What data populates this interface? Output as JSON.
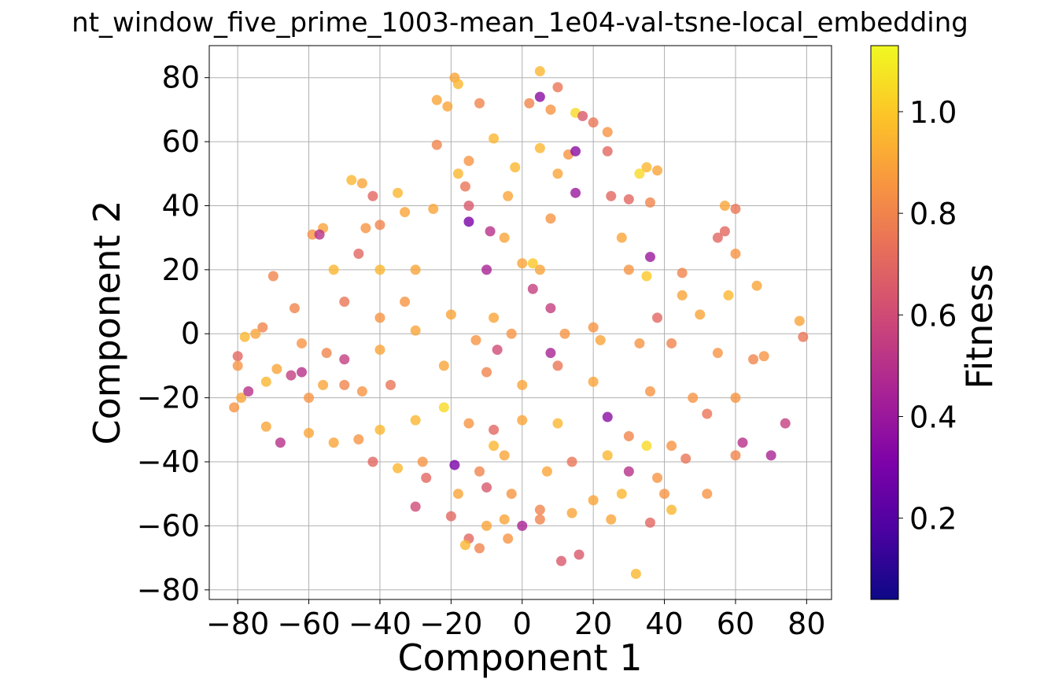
{
  "chart_data": {
    "type": "scatter",
    "title": "nt_window_five_prime_1003-mean_1e04-val-tsne-local_embedding",
    "xlabel": "Component 1",
    "ylabel": "Component 2",
    "xlim": [
      -88,
      87
    ],
    "ylim": [
      -83,
      90
    ],
    "xticks": [
      -80,
      -60,
      -40,
      -20,
      0,
      20,
      40,
      60,
      80
    ],
    "yticks": [
      -80,
      -60,
      -40,
      -20,
      0,
      20,
      40,
      60,
      80
    ],
    "xtick_labels": [
      "−80",
      "−60",
      "−40",
      "−20",
      "0",
      "20",
      "40",
      "60",
      "80"
    ],
    "ytick_labels": [
      "−80",
      "−60",
      "−40",
      "−20",
      "0",
      "20",
      "40",
      "60",
      "80"
    ],
    "grid": true,
    "colormap": "plasma",
    "colorbar": {
      "label": "Fitness",
      "range": [
        0.04,
        1.13
      ],
      "ticks": [
        0.2,
        0.4,
        0.6,
        0.8,
        1.0
      ],
      "tick_labels": [
        "0.2",
        "0.4",
        "0.6",
        "0.8",
        "1.0"
      ]
    },
    "points_note": "Representative sample of points (x, y, fitness) read from the scatter.",
    "points": [
      [
        5,
        82,
        0.95
      ],
      [
        -19,
        80,
        0.9
      ],
      [
        -18,
        78,
        0.95
      ],
      [
        5,
        74,
        0.35
      ],
      [
        10,
        77,
        0.75
      ],
      [
        -24,
        73,
        0.9
      ],
      [
        -21,
        71,
        0.9
      ],
      [
        -12,
        72,
        0.8
      ],
      [
        2,
        72,
        0.8
      ],
      [
        8,
        70,
        0.85
      ],
      [
        15,
        69,
        1.05
      ],
      [
        17,
        68,
        0.65
      ],
      [
        20,
        66,
        0.75
      ],
      [
        24,
        63,
        0.85
      ],
      [
        5,
        58,
        0.95
      ],
      [
        -8,
        61,
        0.95
      ],
      [
        -24,
        59,
        0.8
      ],
      [
        13,
        56,
        0.85
      ],
      [
        15,
        57,
        0.35
      ],
      [
        24,
        57,
        0.7
      ],
      [
        -2,
        52,
        0.95
      ],
      [
        -15,
        54,
        0.85
      ],
      [
        35,
        52,
        0.95
      ],
      [
        33,
        50,
        1.05
      ],
      [
        38,
        51,
        0.9
      ],
      [
        -18,
        50,
        0.95
      ],
      [
        10,
        50,
        0.9
      ],
      [
        15,
        44,
        0.4
      ],
      [
        -35,
        44,
        0.95
      ],
      [
        -48,
        48,
        0.95
      ],
      [
        -45,
        47,
        0.9
      ],
      [
        -42,
        43,
        0.7
      ],
      [
        -16,
        46,
        0.75
      ],
      [
        -4,
        43,
        0.9
      ],
      [
        30,
        42,
        0.7
      ],
      [
        36,
        41,
        0.8
      ],
      [
        57,
        40,
        0.9
      ],
      [
        60,
        39,
        0.75
      ],
      [
        -33,
        38,
        0.9
      ],
      [
        -25,
        39,
        0.9
      ],
      [
        -15,
        40,
        0.65
      ],
      [
        8,
        36,
        0.85
      ],
      [
        -40,
        34,
        0.8
      ],
      [
        -56,
        33,
        0.9
      ],
      [
        -59,
        31,
        0.85
      ],
      [
        -57,
        31,
        0.5
      ],
      [
        -44,
        33,
        0.85
      ],
      [
        -15,
        35,
        0.3
      ],
      [
        -9,
        32,
        0.5
      ],
      [
        -5,
        30,
        0.9
      ],
      [
        28,
        30,
        0.9
      ],
      [
        55,
        30,
        0.7
      ],
      [
        57,
        32,
        0.7
      ],
      [
        -53,
        20,
        0.95
      ],
      [
        -46,
        25,
        0.7
      ],
      [
        -40,
        20,
        0.95
      ],
      [
        -30,
        20,
        0.9
      ],
      [
        -10,
        20,
        0.45
      ],
      [
        0,
        22,
        0.9
      ],
      [
        5,
        20,
        0.9
      ],
      [
        30,
        20,
        0.85
      ],
      [
        35,
        18,
        1.0
      ],
      [
        45,
        19,
        0.8
      ],
      [
        60,
        25,
        0.85
      ],
      [
        -70,
        18,
        0.8
      ],
      [
        -64,
        8,
        0.8
      ],
      [
        -50,
        10,
        0.75
      ],
      [
        -40,
        5,
        0.85
      ],
      [
        -33,
        10,
        0.85
      ],
      [
        -20,
        6,
        0.9
      ],
      [
        -8,
        5,
        0.9
      ],
      [
        3,
        14,
        0.55
      ],
      [
        8,
        8,
        0.55
      ],
      [
        20,
        2,
        0.85
      ],
      [
        38,
        5,
        0.7
      ],
      [
        50,
        6,
        0.9
      ],
      [
        66,
        15,
        0.9
      ],
      [
        78,
        4,
        0.9
      ],
      [
        79,
        -1,
        0.75
      ],
      [
        -73,
        2,
        0.8
      ],
      [
        -78,
        -1,
        0.95
      ],
      [
        -80,
        -7,
        0.7
      ],
      [
        -75,
        0,
        0.9
      ],
      [
        -62,
        -3,
        0.85
      ],
      [
        -55,
        -6,
        0.8
      ],
      [
        -50,
        -8,
        0.55
      ],
      [
        -40,
        -5,
        0.9
      ],
      [
        -30,
        1,
        0.9
      ],
      [
        -13,
        -2,
        0.85
      ],
      [
        -3,
        0,
        0.85
      ],
      [
        12,
        0,
        0.85
      ],
      [
        22,
        -2,
        0.9
      ],
      [
        33,
        -3,
        0.85
      ],
      [
        42,
        -3,
        0.8
      ],
      [
        55,
        -6,
        0.85
      ],
      [
        65,
        -8,
        0.8
      ],
      [
        68,
        -7,
        0.85
      ],
      [
        -80,
        -10,
        0.85
      ],
      [
        -79,
        -20,
        0.9
      ],
      [
        -72,
        -15,
        0.95
      ],
      [
        -69,
        -11,
        0.9
      ],
      [
        -65,
        -13,
        0.55
      ],
      [
        -60,
        -20,
        0.85
      ],
      [
        -56,
        -16,
        0.9
      ],
      [
        -50,
        -16,
        0.8
      ],
      [
        -45,
        -18,
        0.85
      ],
      [
        -37,
        -16,
        0.75
      ],
      [
        -22,
        -10,
        0.9
      ],
      [
        -10,
        -12,
        0.8
      ],
      [
        0,
        -16,
        0.9
      ],
      [
        10,
        -10,
        0.75
      ],
      [
        20,
        -15,
        0.9
      ],
      [
        36,
        -18,
        0.85
      ],
      [
        48,
        -20,
        0.85
      ],
      [
        60,
        -20,
        0.85
      ],
      [
        -81,
        -23,
        0.85
      ],
      [
        -77,
        -18,
        0.5
      ],
      [
        -72,
        -29,
        0.9
      ],
      [
        -68,
        -34,
        0.5
      ],
      [
        -60,
        -31,
        0.9
      ],
      [
        -53,
        -34,
        0.9
      ],
      [
        -46,
        -33,
        0.85
      ],
      [
        -40,
        -30,
        0.95
      ],
      [
        -30,
        -27,
        0.95
      ],
      [
        -22,
        -23,
        1.05
      ],
      [
        -15,
        -28,
        0.85
      ],
      [
        -8,
        -30,
        0.7
      ],
      [
        0,
        -27,
        0.9
      ],
      [
        10,
        -28,
        0.95
      ],
      [
        24,
        -26,
        0.35
      ],
      [
        30,
        -32,
        0.8
      ],
      [
        35,
        -35,
        1.05
      ],
      [
        42,
        -35,
        0.85
      ],
      [
        52,
        -25,
        0.75
      ],
      [
        62,
        -34,
        0.5
      ],
      [
        70,
        -38,
        0.45
      ],
      [
        74,
        -28,
        0.55
      ],
      [
        -35,
        -42,
        0.95
      ],
      [
        -28,
        -40,
        0.85
      ],
      [
        -19,
        -41,
        0.3
      ],
      [
        -12,
        -43,
        0.8
      ],
      [
        -5,
        -38,
        0.9
      ],
      [
        7,
        -43,
        0.9
      ],
      [
        14,
        -40,
        0.75
      ],
      [
        24,
        -38,
        0.95
      ],
      [
        30,
        -43,
        0.5
      ],
      [
        38,
        -45,
        0.85
      ],
      [
        46,
        -39,
        0.75
      ],
      [
        60,
        -38,
        0.8
      ],
      [
        -27,
        -45,
        0.7
      ],
      [
        -18,
        -50,
        0.9
      ],
      [
        -10,
        -48,
        0.65
      ],
      [
        -3,
        -50,
        0.85
      ],
      [
        5,
        -55,
        0.8
      ],
      [
        20,
        -52,
        0.9
      ],
      [
        28,
        -50,
        0.95
      ],
      [
        40,
        -50,
        0.85
      ],
      [
        52,
        -50,
        0.85
      ],
      [
        -30,
        -54,
        0.6
      ],
      [
        -20,
        -57,
        0.7
      ],
      [
        -15,
        -64,
        0.7
      ],
      [
        -10,
        -60,
        0.9
      ],
      [
        -5,
        -58,
        0.9
      ],
      [
        0,
        -60,
        0.45
      ],
      [
        5,
        -58,
        0.8
      ],
      [
        14,
        -56,
        0.9
      ],
      [
        25,
        -58,
        0.9
      ],
      [
        36,
        -59,
        0.7
      ],
      [
        -16,
        -66,
        0.95
      ],
      [
        -12,
        -67,
        0.8
      ],
      [
        -4,
        -64,
        0.85
      ],
      [
        11,
        -71,
        0.65
      ],
      [
        16,
        -69,
        0.65
      ],
      [
        32,
        -75,
        0.95
      ],
      [
        -7,
        -5,
        0.6
      ],
      [
        8,
        -6,
        0.45
      ],
      [
        -62,
        -12,
        0.5
      ],
      [
        -42,
        -40,
        0.7
      ],
      [
        42,
        -55,
        0.95
      ],
      [
        58,
        12,
        0.95
      ],
      [
        45,
        12,
        0.9
      ],
      [
        25,
        43,
        0.7
      ],
      [
        36,
        24,
        0.4
      ],
      [
        -8,
        -35,
        0.95
      ],
      [
        3,
        22,
        1.0
      ]
    ]
  }
}
